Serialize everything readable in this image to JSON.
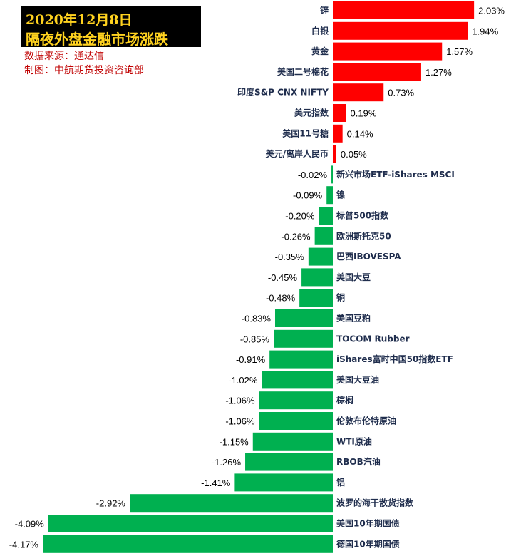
{
  "header": {
    "title_line1": "2020年12月8日",
    "title_line2": "隔夜外盘金融市场涨跌",
    "source": "数据来源：通达信",
    "maker": "制图：中航期货投资咨询部"
  },
  "colors": {
    "positive": "#ff0000",
    "negative": "#00b050",
    "title_bg": "#000000",
    "title_text": "#ffd21f",
    "source_text": "#c00000"
  },
  "chart_data": {
    "type": "bar",
    "orientation": "horizontal",
    "categories": [
      "锌",
      "白银",
      "黄金",
      "美国二号棉花",
      "印度S&P CNX NIFTY",
      "美元指数",
      "美国11号糖",
      "美元/离岸人民币",
      "新兴市场ETF-iShares MSCI",
      "镍",
      "标普500指数",
      "欧洲斯托克50",
      "巴西IBOVESPA",
      "美国大豆",
      "铜",
      "美国豆粕",
      "TOCOM Rubber",
      "iShares富时中国50指数ETF",
      "美国大豆油",
      "棕榈",
      "伦敦布伦特原油",
      "WTI原油",
      "RBOB汽油",
      "铝",
      "波罗的海干散货指数",
      "美国10年期国债",
      "德国10年期国债"
    ],
    "values": [
      2.03,
      1.94,
      1.57,
      1.27,
      0.73,
      0.19,
      0.14,
      0.05,
      -0.02,
      -0.09,
      -0.2,
      -0.26,
      -0.35,
      -0.45,
      -0.48,
      -0.83,
      -0.85,
      -0.91,
      -1.02,
      -1.06,
      -1.06,
      -1.15,
      -1.26,
      -1.41,
      -2.92,
      -4.09,
      -4.17
    ],
    "value_labels": [
      "2.03%",
      "1.94%",
      "1.57%",
      "1.27%",
      "0.73%",
      "0.19%",
      "0.14%",
      "0.05%",
      "-0.02%",
      "-0.09%",
      "-0.20%",
      "-0.26%",
      "-0.35%",
      "-0.45%",
      "-0.48%",
      "-0.83%",
      "-0.85%",
      "-0.91%",
      "-1.02%",
      "-1.06%",
      "-1.06%",
      "-1.15%",
      "-1.26%",
      "-1.41%",
      "-2.92%",
      "-4.09%",
      "-4.17%"
    ],
    "unit": "%",
    "title": "隔夜外盘金融市场涨跌",
    "grid": false,
    "legend": "none"
  }
}
